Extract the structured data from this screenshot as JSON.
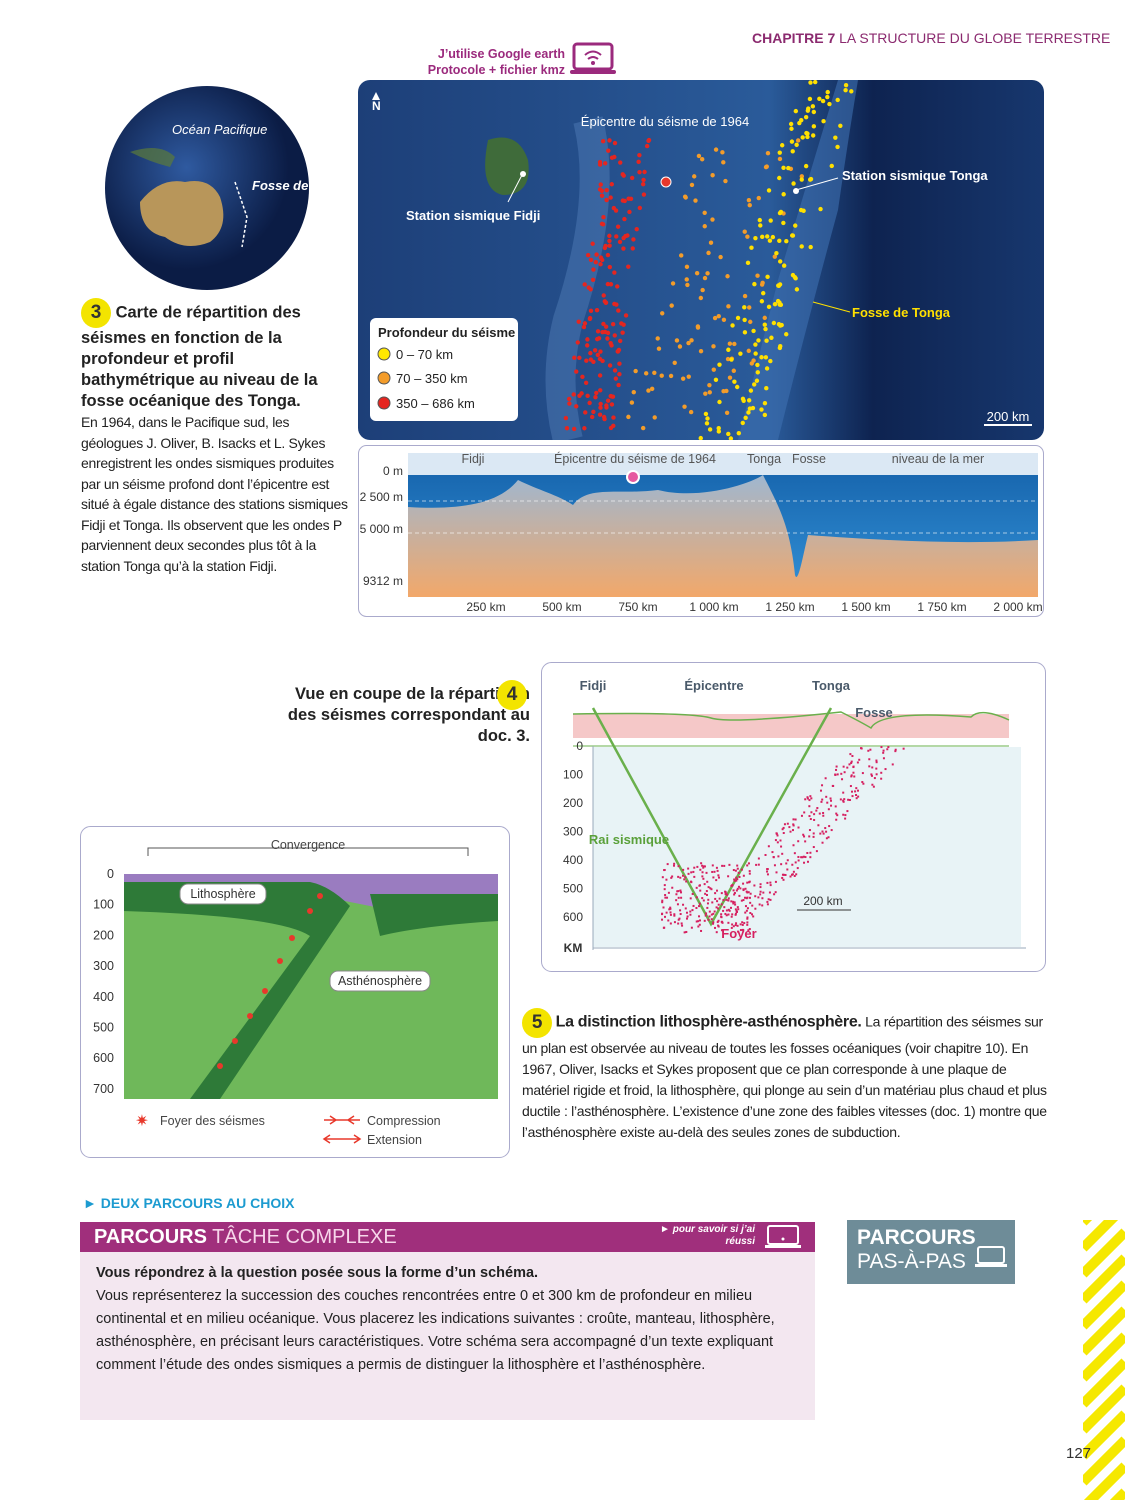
{
  "header": {
    "chapter": "CHAPITRE 7",
    "title": "LA STRUCTURE DU GLOBE TERRESTRE"
  },
  "google_earth": {
    "line1": "J’utilise Google earth",
    "line2": "Protocole + fichier kmz"
  },
  "globe": {
    "ocean": "Océan Pacifique",
    "trench": "Fosse de Tonga"
  },
  "doc3": {
    "number": "3",
    "title": "Carte de répartition des séismes en fonction de la profondeur et profil bathymétrique au niveau de la fosse océanique des Tonga.",
    "text": "En 1964, dans le Pacifique sud, les géologues J. Oliver, B. Isacks et L. Sykes enregistrent les ondes sismiques produites par un séisme profond dont l’épicentre est situé à égale distance des stations sismiques Fidji et Tonga. Ils observent que les ondes P parviennent deux secondes plus tôt à la station Tonga qu’à la station Fidji."
  },
  "map": {
    "north": "N",
    "epicenter": "Épicentre du séisme de 1964",
    "station_fiji": "Station sismique Fidji",
    "station_tonga": "Station sismique Tonga",
    "trench": "Fosse de Tonga",
    "legend_title": "Profondeur du séisme",
    "legend_items": [
      "0 – 70 km",
      "70 – 350 km",
      "350 – 686 km"
    ],
    "scale": "200 km"
  },
  "profile": {
    "top_labels": [
      "Fidji",
      "Épicentre du séisme de 1964",
      "Tonga",
      "Fosse",
      "niveau de la mer"
    ],
    "depths": [
      "0 m",
      "2 500 m",
      "5 000 m",
      "9312 m"
    ],
    "distances": [
      "250 km",
      "500 km",
      "750 km",
      "1 000 km",
      "1 250 km",
      "1 500 km",
      "1 750 km",
      "2 000 km"
    ]
  },
  "doc4": {
    "number": "4",
    "title": "Vue en coupe de la répartition des séismes correspondant au doc. 3.",
    "top_labels": [
      "Fidji",
      "Épicentre",
      "Tonga",
      "Fosse"
    ],
    "depths": [
      "0",
      "100",
      "200",
      "300",
      "400",
      "500",
      "600"
    ],
    "unit": "KM",
    "ray": "Rai sismique",
    "focus": "Foyer",
    "scale": "200 km"
  },
  "doc5_figure": {
    "convergence": "Convergence",
    "lithosphere": "Lithosphère",
    "asthenosphere": "Asthénosphère",
    "depths": [
      "0",
      "100",
      "200",
      "300",
      "400",
      "500",
      "600",
      "700"
    ],
    "legend": [
      "Foyer des séismes",
      "Compression",
      "Extension"
    ]
  },
  "doc5": {
    "number": "5",
    "title": "La distinction lithosphère-asthénosphère.",
    "text": "La répartition des séismes sur un plan est observée au niveau de toutes les fosses océaniques (voir chapitre 10). En 1967, Oliver, Isacks et Sykes proposent que ce plan corresponde à une plaque de matériel rigide et froid, la lithosphère, qui plonge au sein d’un matériau plus chaud et plus ductile : l’asthénosphère. L’existence d’une zone des faibles vitesses (doc. 1) montre que l’asthénosphère existe au-delà des seules zones de subduction."
  },
  "parcours": {
    "heading": "DEUX PARCOURS AU CHOIX",
    "complex": {
      "label": "PARCOURS",
      "name": "TÂCHE COMPLEXE",
      "link": "pour savoir si j’ai réussi",
      "question": "Vous répondrez à la question posée sous la forme d’un schéma.",
      "body": "Vous représenterez la succession des couches rencontrées entre 0 et 300 km de profondeur en milieu continental et en milieu océanique. Vous placerez les indications suivantes : croûte, manteau, lithosphère, asthénosphère, en précisant leurs caractéristiques. Votre schéma sera accompagné d’un texte expliquant comment l’étude des ondes sismiques a permis de distinguer la lithosphère et l’asthénosphère."
    },
    "step": {
      "label": "PARCOURS",
      "name": "PAS-À-PAS"
    }
  },
  "page_number": "127"
}
